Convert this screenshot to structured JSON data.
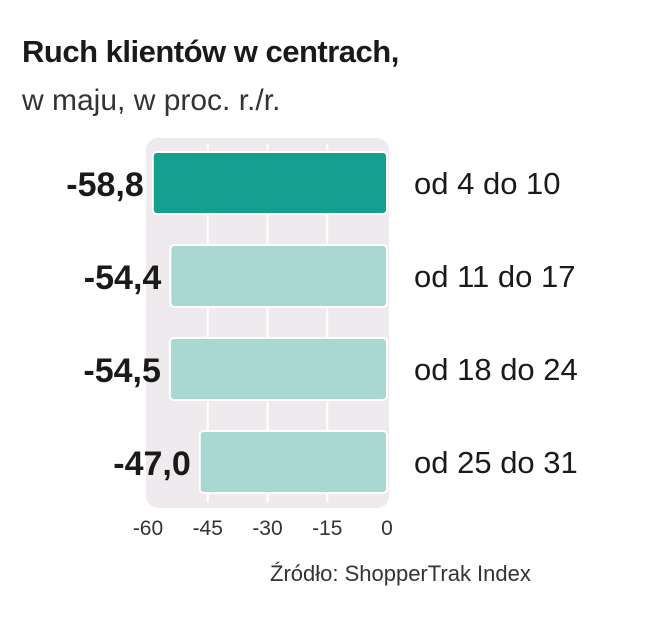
{
  "chart_data": {
    "type": "bar",
    "orientation": "horizontal",
    "title": "Ruch klientów w centrach,",
    "subtitle": "w maju, w proc. r./r.",
    "categories": [
      "od 4 do 10",
      "od 11 do 17",
      "od 18 do 24",
      "od 25 do 31"
    ],
    "values": [
      -58.8,
      -54.4,
      -54.5,
      -47.0
    ],
    "value_labels": [
      "-58,8",
      "-54,4",
      "-54,5",
      "-47,0"
    ],
    "xlim": [
      -60,
      0
    ],
    "xticks": [
      -60,
      -45,
      -30,
      -15,
      0
    ],
    "xtick_labels": [
      "-60",
      "-45",
      "-30",
      "-15",
      "0"
    ],
    "grid": true,
    "highlight_index": 0,
    "colors": {
      "highlight": "#14a08e",
      "bar": "#a9d8d2",
      "background": "#efeaee",
      "grid": "#ffffff"
    },
    "source": "Źródło: ShopperTrak Index"
  }
}
